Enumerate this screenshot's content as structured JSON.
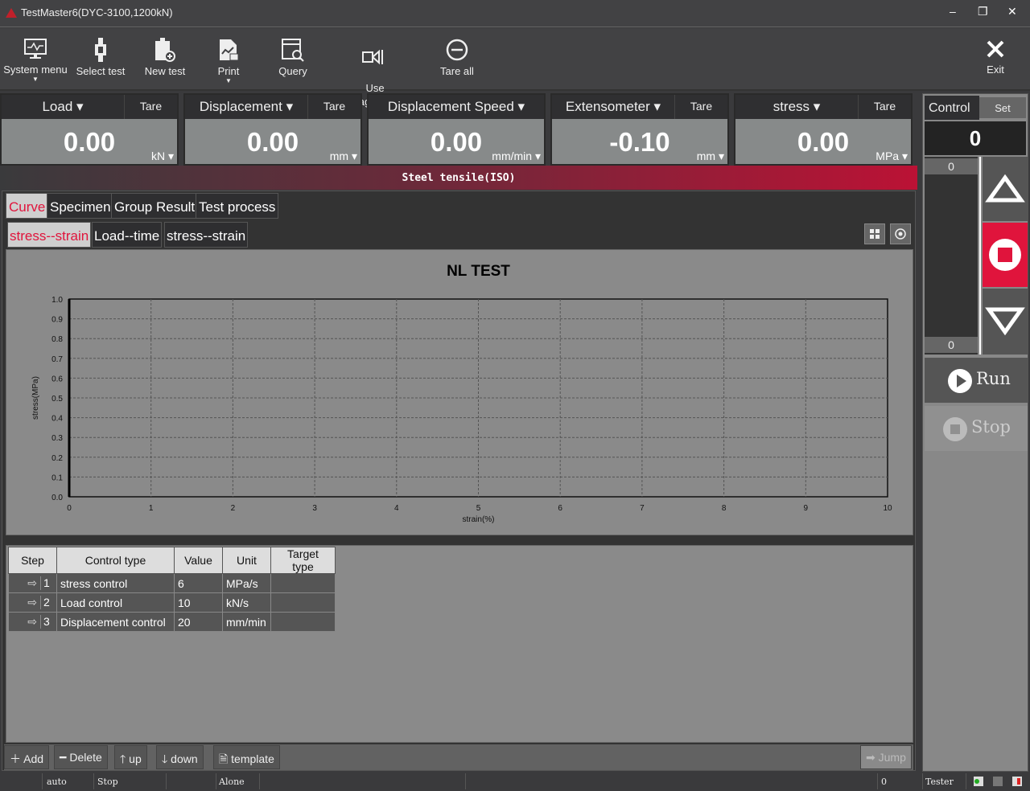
{
  "window": {
    "title": "TestMaster6(DYC-3100,1200kN)",
    "minimize": "‒",
    "restore": "❐",
    "close": "✕"
  },
  "toolbar": [
    {
      "label": "System menu",
      "icon": "monitor-chart-icon",
      "dropdown": true
    },
    {
      "label": "Select test",
      "icon": "specimen-icon"
    },
    {
      "label": "New test",
      "icon": "new-document-icon"
    },
    {
      "label": "Print",
      "icon": "print-document-icon",
      "dropdown": true
    },
    {
      "label": "Query",
      "icon": "search-window-icon"
    },
    {
      "label": "Use\naverage deform",
      "icon": "extensometer-icon"
    },
    {
      "label": "Tare all",
      "icon": "minus-circle-icon"
    },
    {
      "label": "Exit",
      "icon": "close-icon"
    }
  ],
  "meters": [
    {
      "name": "Load",
      "tare": "Tare",
      "value": "0.00",
      "unit": "kN"
    },
    {
      "name": "Displacement",
      "tare": "Tare",
      "value": "0.00",
      "unit": "mm"
    },
    {
      "name": "Displacement Speed",
      "tare": "",
      "value": "0.00",
      "unit": "mm/min"
    },
    {
      "name": "Extensometer",
      "tare": "Tare",
      "value": "-0.10",
      "unit": "mm"
    },
    {
      "name": "stress",
      "tare": "Tare",
      "value": "0.00",
      "unit": "MPa"
    }
  ],
  "banner": "Steel tensile(ISO)",
  "tabs": [
    "Curve",
    "Specimen",
    "Group Result",
    "Test process"
  ],
  "subtabs": [
    "stress--strain",
    "Load--time",
    "stress--strain"
  ],
  "chart_data": {
    "type": "line",
    "title": "NL TEST",
    "xlabel": "strain(%)",
    "ylabel": "stress(MPa)",
    "xlim": [
      0,
      10
    ],
    "ylim": [
      0,
      1.0
    ],
    "xticks": [
      "0",
      "1",
      "2",
      "3",
      "4",
      "5",
      "6",
      "7",
      "8",
      "9",
      "10"
    ],
    "yticks": [
      "0.0",
      "0.1",
      "0.2",
      "0.3",
      "0.4",
      "0.5",
      "0.6",
      "0.7",
      "0.8",
      "0.9",
      "1.0"
    ],
    "grid": true,
    "series": []
  },
  "steps": {
    "headers": [
      "Step",
      "Control type",
      "Value",
      "Unit",
      "Target type"
    ],
    "rows": [
      [
        "1",
        "stress control",
        "6",
        "MPa/s",
        ""
      ],
      [
        "2",
        "Load control",
        "10",
        "kN/s",
        ""
      ],
      [
        "3",
        "Displacement control",
        "20",
        "mm/min",
        ""
      ]
    ]
  },
  "buttons": {
    "add": "Add",
    "delete": "Delete",
    "up": "up",
    "down": "down",
    "template": "template",
    "jump": "Jump"
  },
  "control": {
    "label": "Control",
    "set": "Set",
    "value": "0",
    "upper": "0",
    "lower": "0",
    "run": "Run",
    "stop": "Stop",
    "stop_color": "#e0143c"
  },
  "status": {
    "mode": "auto",
    "state": "Stop",
    "connection": "Alone",
    "count": "0",
    "user": "Tester"
  }
}
